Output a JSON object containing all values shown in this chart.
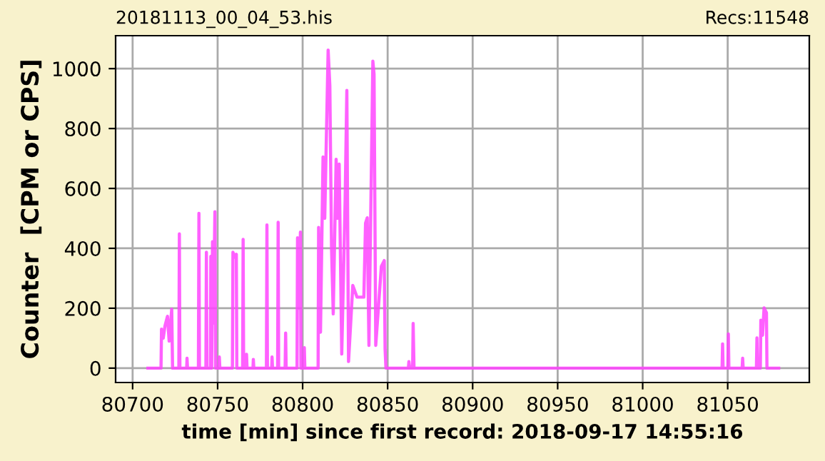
{
  "chart_data": {
    "type": "line",
    "title": "20181113_00_04_53.his",
    "annotations": [
      "Recs:11548"
    ],
    "xlabel": "time [min] since first record: 2018-09-17 14:55:16",
    "ylabel": "Counter  [CPM or CPS]",
    "series": [
      {
        "color": "#ff44ff",
        "x": [
          80709,
          80716.7,
          80717,
          80718,
          80719,
          80720.5,
          80721.5,
          80723,
          80723.5,
          80727.2,
          80727.5,
          80727.8,
          80731.8,
          80732,
          80732.3,
          80738.7,
          80739,
          80739.3,
          80743.1,
          80743.4,
          80743.7,
          80745.8,
          80746,
          80746.5,
          80747,
          80747.5,
          80748.4,
          80748.8,
          80750.8,
          80751,
          80751.3,
          80758.7,
          80759,
          80760,
          80761,
          80761.3,
          80764.7,
          80765,
          80765.3,
          80766.8,
          80767,
          80767.3,
          80770.8,
          80771,
          80771.3,
          80778.7,
          80779,
          80779.3,
          80781.8,
          80782,
          80782.3,
          80785.3,
          80785.6,
          80785.9,
          80789.7,
          80790,
          80790.3,
          80796.7,
          80797,
          80798,
          80798.7,
          80799,
          80800.8,
          80801,
          80801.3,
          80809.1,
          80809.4,
          80810.5,
          80812,
          80813,
          80815,
          80816,
          80817,
          80818,
          80819.7,
          80820.5,
          80821.5,
          80823,
          80825,
          80826,
          80827,
          80829.5,
          80832,
          80834,
          80836,
          80837,
          80838,
          80839,
          80841.3,
          80842,
          80843,
          80846.3,
          80848,
          80848.5,
          80849,
          80862.2,
          80862.5,
          80863,
          80864.7,
          80865,
          80865.5,
          80868,
          81046,
          81046.7,
          81047,
          81047.3,
          81050.1,
          81050.4,
          81050.7,
          81058.5,
          81058.8,
          81059.1,
          81066.9,
          81067.2,
          81067.5,
          81069.2,
          81069.5,
          81070.5,
          81071.4,
          81072.8,
          81073.1,
          81080
        ],
        "values": [
          0,
          0,
          130,
          100,
          140,
          173,
          90,
          197,
          0,
          0,
          448,
          0,
          0,
          33,
          0,
          0,
          517,
          0,
          0,
          387,
          0,
          0,
          373,
          0,
          422,
          150,
          522,
          0,
          0,
          37,
          0,
          0,
          387,
          370,
          380,
          0,
          0,
          430,
          0,
          0,
          46,
          0,
          0,
          29,
          0,
          0,
          478,
          0,
          0,
          37,
          0,
          0,
          487,
          0,
          0,
          117,
          0,
          0,
          435,
          200,
          454,
          0,
          0,
          68,
          0,
          0,
          470,
          120,
          705,
          500,
          1062,
          943,
          400,
          181,
          697,
          500,
          681,
          47,
          562,
          927,
          22,
          276,
          237,
          237,
          237,
          484,
          502,
          76,
          1025,
          982,
          76,
          340,
          359,
          63,
          0,
          0,
          22,
          0,
          0,
          149,
          0,
          0,
          0,
          0,
          81,
          0,
          0,
          114,
          0,
          0,
          33,
          0,
          0,
          101,
          0,
          0,
          160,
          110,
          201,
          185,
          0,
          0
        ]
      }
    ],
    "xlim": [
      80690,
      81098
    ],
    "xticks": [
      80700,
      80750,
      80800,
      80850,
      80900,
      80950,
      81000,
      81050
    ],
    "ylim": [
      -48,
      1110
    ],
    "yticks": [
      0,
      200,
      400,
      600,
      800,
      1000
    ],
    "grid": true,
    "line_style": "solid",
    "marker": "none"
  }
}
